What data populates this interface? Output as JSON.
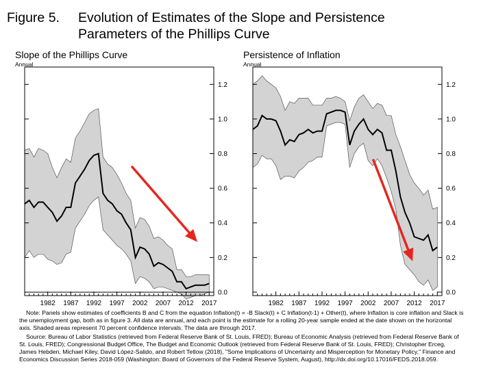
{
  "figure": {
    "number_label": "Figure 5.",
    "title_line1": "Evolution of Estimates of the Slope and Persistence",
    "title_line2": "Parameters of the Phillips Curve"
  },
  "annotation_color": "#e5261f",
  "chart_data": [
    {
      "type": "line",
      "title": "Slope of the Phillips Curve",
      "ylabel": "Annual",
      "xlabel": "",
      "x_ticks": [
        "1982",
        "1987",
        "1992",
        "1997",
        "2002",
        "2007",
        "2012",
        "2017"
      ],
      "y_ticks": [
        "0.0",
        "0.2",
        "0.4",
        "0.6",
        "0.8",
        "1.0",
        "1.2"
      ],
      "xlim": [
        1977,
        2018
      ],
      "ylim": [
        -0.02,
        1.3
      ],
      "zero_line": true,
      "band_color": "#d3d3d3",
      "series": [
        {
          "name": "Estimate",
          "x": [
            1977,
            1978,
            1979,
            1980,
            1981,
            1982,
            1983,
            1984,
            1985,
            1986,
            1987,
            1988,
            1989,
            1990,
            1991,
            1992,
            1993,
            1994,
            1995,
            1996,
            1997,
            1998,
            1999,
            2000,
            2001,
            2002,
            2003,
            2004,
            2005,
            2006,
            2007,
            2008,
            2009,
            2010,
            2011,
            2012,
            2013,
            2014,
            2015,
            2016,
            2017
          ],
          "values": [
            0.51,
            0.53,
            0.49,
            0.52,
            0.52,
            0.49,
            0.46,
            0.41,
            0.44,
            0.49,
            0.49,
            0.63,
            0.67,
            0.71,
            0.76,
            0.79,
            0.8,
            0.57,
            0.53,
            0.51,
            0.47,
            0.45,
            0.4,
            0.36,
            0.2,
            0.26,
            0.25,
            0.22,
            0.15,
            0.17,
            0.16,
            0.14,
            0.12,
            0.06,
            0.06,
            0.02,
            0.03,
            0.04,
            0.04,
            0.04,
            0.05
          ]
        },
        {
          "name": "Upper bound (70% CI)",
          "x": [
            1977,
            1978,
            1979,
            1980,
            1981,
            1982,
            1983,
            1984,
            1985,
            1986,
            1987,
            1988,
            1989,
            1990,
            1991,
            1992,
            1993,
            1994,
            1995,
            1996,
            1997,
            1998,
            1999,
            2000,
            2001,
            2002,
            2003,
            2004,
            2005,
            2006,
            2007,
            2008,
            2009,
            2010,
            2011,
            2012,
            2013,
            2014,
            2015,
            2016,
            2017
          ],
          "values": [
            0.82,
            0.83,
            0.78,
            0.83,
            0.82,
            0.8,
            0.72,
            0.66,
            0.72,
            0.77,
            0.75,
            0.89,
            0.93,
            0.98,
            1.03,
            1.05,
            1.06,
            0.78,
            0.74,
            0.72,
            0.68,
            0.63,
            0.57,
            0.53,
            0.37,
            0.43,
            0.42,
            0.38,
            0.31,
            0.32,
            0.3,
            0.27,
            0.25,
            0.13,
            0.13,
            0.09,
            0.09,
            0.1,
            0.1,
            0.1,
            0.1
          ]
        },
        {
          "name": "Lower bound (70% CI)",
          "x": [
            1977,
            1978,
            1979,
            1980,
            1981,
            1982,
            1983,
            1984,
            1985,
            1986,
            1987,
            1988,
            1989,
            1990,
            1991,
            1992,
            1993,
            1994,
            1995,
            1996,
            1997,
            1998,
            1999,
            2000,
            2001,
            2002,
            2003,
            2004,
            2005,
            2006,
            2007,
            2008,
            2009,
            2010,
            2011,
            2012,
            2013,
            2014,
            2015,
            2016,
            2017
          ],
          "values": [
            0.2,
            0.24,
            0.2,
            0.22,
            0.22,
            0.19,
            0.18,
            0.16,
            0.17,
            0.22,
            0.23,
            0.37,
            0.41,
            0.45,
            0.5,
            0.53,
            0.55,
            0.36,
            0.33,
            0.3,
            0.27,
            0.25,
            0.22,
            0.18,
            0.05,
            0.09,
            0.08,
            0.06,
            0.02,
            0.03,
            0.03,
            0.02,
            0.01,
            0.0,
            -0.01,
            -0.04,
            -0.03,
            -0.02,
            -0.02,
            -0.01,
            0.0
          ]
        }
      ]
    },
    {
      "type": "line",
      "title": "Persistence of Inflation",
      "ylabel": "Annual",
      "xlabel": "",
      "x_ticks": [
        "1982",
        "1987",
        "1992",
        "1997",
        "2002",
        "2007",
        "2012",
        "2017"
      ],
      "y_ticks": [
        "0.0",
        "0.2",
        "0.4",
        "0.6",
        "0.8",
        "1.0",
        "1.2"
      ],
      "xlim": [
        1977,
        2018
      ],
      "ylim": [
        -0.02,
        1.3
      ],
      "zero_line": false,
      "band_color": "#d3d3d3",
      "series": [
        {
          "name": "Estimate",
          "x": [
            1977,
            1978,
            1979,
            1980,
            1981,
            1982,
            1983,
            1984,
            1985,
            1986,
            1987,
            1988,
            1989,
            1990,
            1991,
            1992,
            1993,
            1994,
            1995,
            1996,
            1997,
            1998,
            1999,
            2000,
            2001,
            2002,
            2003,
            2004,
            2005,
            2006,
            2007,
            2008,
            2009,
            2010,
            2011,
            2012,
            2013,
            2014,
            2015,
            2016,
            2017
          ],
          "values": [
            0.94,
            0.96,
            1.02,
            1.0,
            1.0,
            0.99,
            0.93,
            0.85,
            0.88,
            0.87,
            0.91,
            0.92,
            0.94,
            0.92,
            0.93,
            0.93,
            1.03,
            1.04,
            1.05,
            1.05,
            1.04,
            0.85,
            0.93,
            0.97,
            1.0,
            0.94,
            0.91,
            0.94,
            0.92,
            0.82,
            0.82,
            0.7,
            0.55,
            0.46,
            0.4,
            0.32,
            0.31,
            0.3,
            0.33,
            0.24,
            0.26
          ]
        },
        {
          "name": "Upper bound (70% CI)",
          "x": [
            1977,
            1978,
            1979,
            1980,
            1981,
            1982,
            1983,
            1984,
            1985,
            1986,
            1987,
            1988,
            1989,
            1990,
            1991,
            1992,
            1993,
            1994,
            1995,
            1996,
            1997,
            1998,
            1999,
            2000,
            2001,
            2002,
            2003,
            2004,
            2005,
            2006,
            2007,
            2008,
            2009,
            2010,
            2011,
            2012,
            2013,
            2014,
            2015,
            2016,
            2017
          ],
          "values": [
            1.2,
            1.22,
            1.25,
            1.22,
            1.2,
            1.18,
            1.13,
            1.05,
            1.1,
            1.09,
            1.12,
            1.12,
            1.12,
            1.08,
            1.08,
            1.08,
            1.12,
            1.12,
            1.13,
            1.12,
            1.1,
            0.99,
            1.07,
            1.12,
            1.14,
            1.1,
            1.06,
            1.09,
            1.08,
            1.02,
            1.02,
            0.91,
            0.84,
            0.76,
            0.68,
            0.63,
            0.6,
            0.56,
            0.59,
            0.48,
            0.49
          ]
        },
        {
          "name": "Lower bound (70% CI)",
          "x": [
            1977,
            1978,
            1979,
            1980,
            1981,
            1982,
            1983,
            1984,
            1985,
            1986,
            1987,
            1988,
            1989,
            1990,
            1991,
            1992,
            1993,
            1994,
            1995,
            1996,
            1997,
            1998,
            1999,
            2000,
            2001,
            2002,
            2003,
            2004,
            2005,
            2006,
            2007,
            2008,
            2009,
            2010,
            2011,
            2012,
            2013,
            2014,
            2015,
            2016,
            2017
          ],
          "values": [
            0.72,
            0.74,
            0.79,
            0.77,
            0.77,
            0.73,
            0.65,
            0.67,
            0.67,
            0.66,
            0.7,
            0.72,
            0.75,
            0.76,
            0.78,
            0.78,
            0.96,
            0.97,
            0.98,
            0.98,
            0.97,
            0.72,
            0.8,
            0.84,
            0.86,
            0.76,
            0.73,
            0.77,
            0.73,
            0.66,
            0.58,
            0.48,
            0.27,
            0.16,
            0.13,
            0.1,
            0.06,
            0.04,
            0.07,
            0.01,
            0.03
          ]
        }
      ]
    }
  ],
  "note": {
    "label": "Note:",
    "text": "Panels show estimates of coefficients B and C from the equation Inflation(t) = -B Slack(t) + C Inflation(t-1) + Other(t), where Inflation is core inflation and Slack is the unemployment gap, both as in figure 3. All data are annual, and each point is the estimate for a rolling 20-year sample ended at the date shown on the horizontal axis. Shaded areas represent 70 percent confidence intervals. The data are through 2017.",
    "source_label": "Source:",
    "source_text": "Bureau of Labor Statistics (retrieved from Federal Reserve Bank of St. Louis, FRED); Bureau of Economic Analysis (retrieved from Federal Reserve Bank of St. Louis, FRED); Congressional Budget Office, The Budget and Economic Outlook (retrieved from Federal Reserve Bank of St. Louis, FRED); Christopher Erceg, James Hebden, Michael Kiley, David López-Salido, and Robert Tetlow (2018), \"Some Implications of Uncertainty and Misperception for Monetary Policy,\" Finance and Economics Discussion Series 2018-059 (Washington: Board of Governors of the Federal Reserve System, August), http://dx.doi.org/10.17016/FEDS.2018.059."
  }
}
